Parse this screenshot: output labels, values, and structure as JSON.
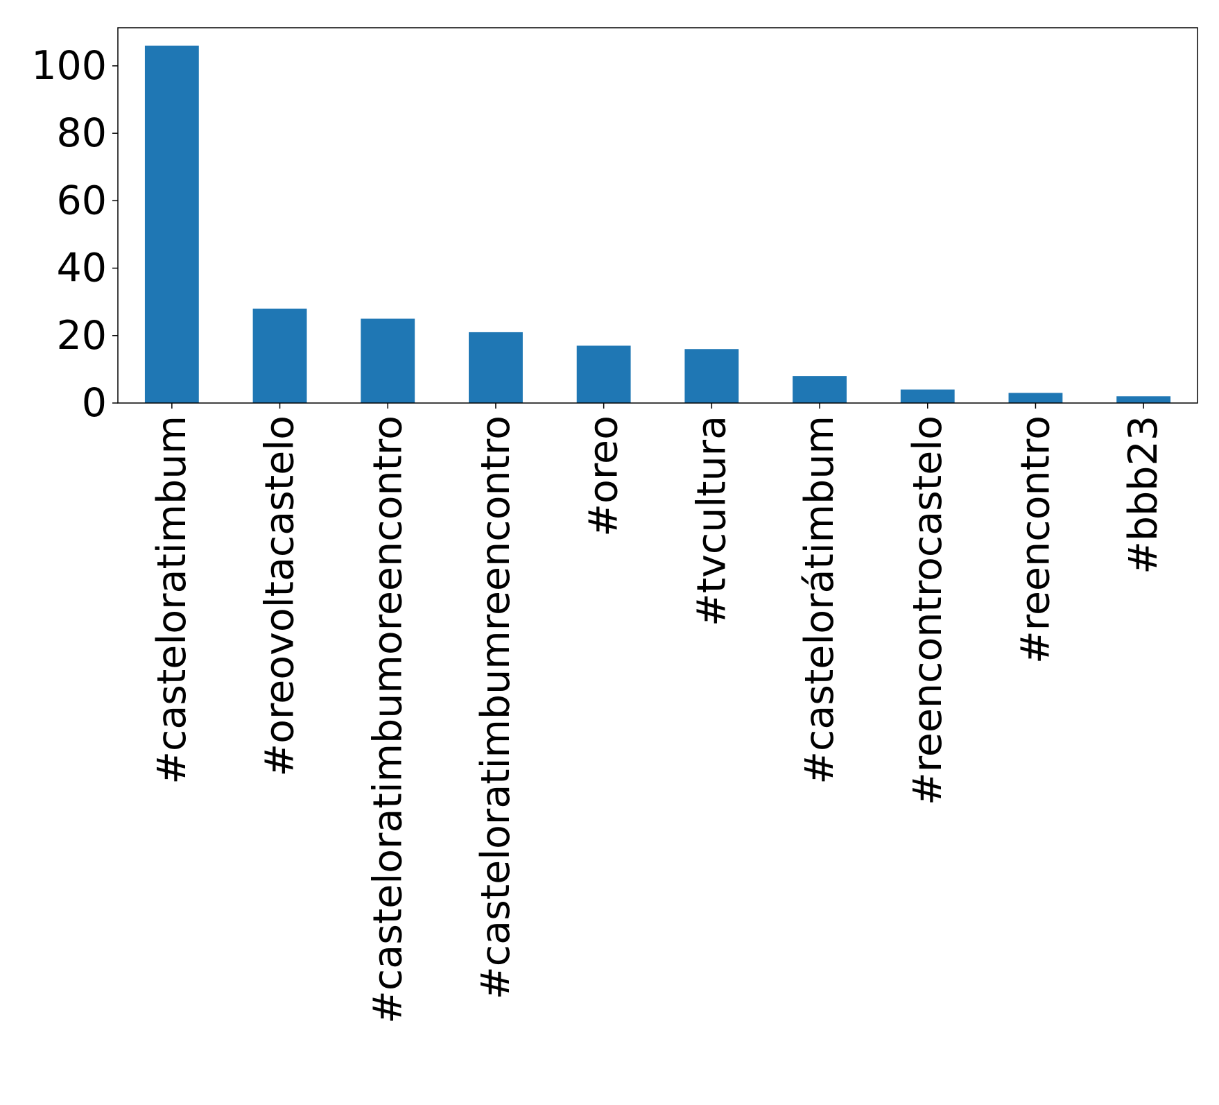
{
  "chart_data": {
    "type": "bar",
    "title": "",
    "xlabel": "",
    "ylabel": "",
    "categories": [
      "#casteloratimbum",
      "#oreovoltacastelo",
      "#casteloratimbumoreencontro",
      "#casteloratimbumreencontro",
      "#oreo",
      "#tvcultura",
      "#castelorátimbum",
      "#reencontrocastelo",
      "#reencontro",
      "#bbb23"
    ],
    "values": [
      106,
      28,
      25,
      21,
      17,
      16,
      8,
      4,
      3,
      2
    ],
    "ylim": [
      0,
      111.3
    ],
    "yticks": [
      0,
      20,
      40,
      60,
      80,
      100
    ],
    "grid": false,
    "legend": "none",
    "bar_color": "#1f77b4"
  }
}
